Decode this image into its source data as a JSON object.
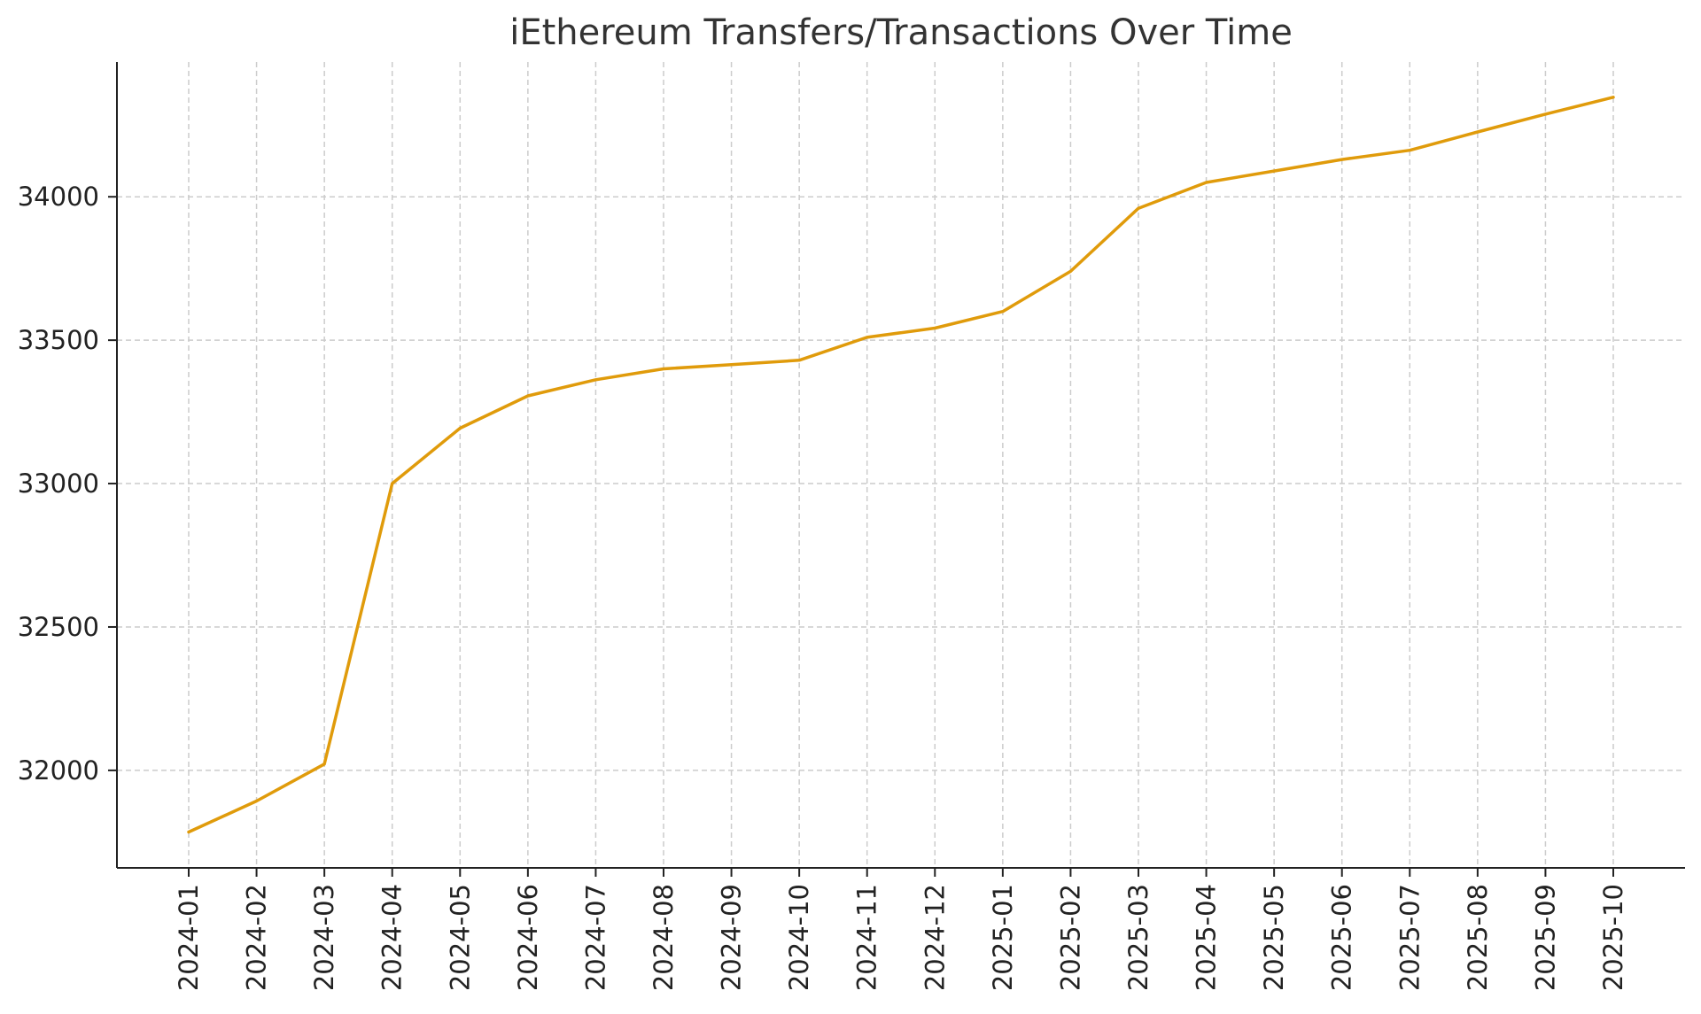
{
  "chart_data": {
    "type": "line",
    "title": "iEthereum Transfers/Transactions Over Time",
    "xlabel": "",
    "ylabel": "",
    "grid": true,
    "categories": [
      "2024-01",
      "2024-02",
      "2024-03",
      "2024-04",
      "2024-05",
      "2024-06",
      "2024-07",
      "2024-08",
      "2024-09",
      "2024-10",
      "2024-11",
      "2024-12",
      "2025-01",
      "2025-02",
      "2025-03",
      "2025-04",
      "2025-05",
      "2025-06",
      "2025-07",
      "2025-08",
      "2025-09",
      "2025-10"
    ],
    "series": [
      {
        "values": [
          31785,
          31893,
          32022,
          33000,
          33193,
          33306,
          33362,
          33400,
          33415,
          33430,
          33510,
          33542,
          33600,
          33740,
          33960,
          34050,
          34090,
          34130,
          34162,
          34226,
          34288,
          34347
        ]
      }
    ],
    "color": "#e09b0b",
    "ylim": [
      31660,
      34470
    ],
    "yticks": [
      32000,
      32500,
      33000,
      33500,
      34000
    ]
  }
}
